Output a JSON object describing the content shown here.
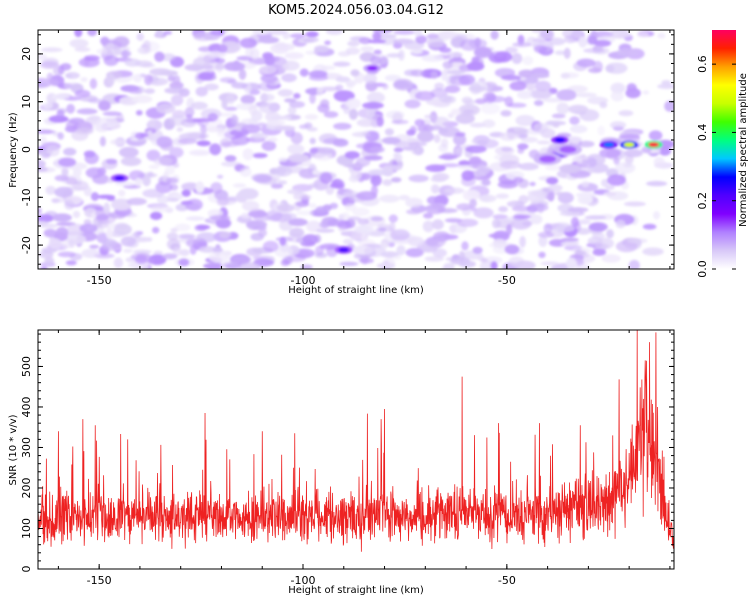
{
  "title": "KOM5.2024.056.03.04.G12",
  "colors": {
    "snr_line": "#ee2222",
    "axes": "#000000",
    "background": "#ffffff"
  },
  "chart_data": [
    {
      "type": "heatmap",
      "xlabel": "Height of straight line (km)",
      "ylabel": "Frequency (Hz)",
      "xlim": [
        -165,
        -9
      ],
      "ylim": [
        -25,
        25
      ],
      "xticks": [
        -150,
        -100,
        -50
      ],
      "yticks": [
        -20,
        -10,
        0,
        10,
        20
      ],
      "colorbar": {
        "label": "Normalized spectral amplitude",
        "range": [
          0.0,
          0.7
        ],
        "ticks": [
          0.0,
          0.2,
          0.4,
          0.6
        ],
        "colormap": [
          "#ffffff",
          "#d8c8f8",
          "#b080ff",
          "#8000ff",
          "#5000ff",
          "#0000ff",
          "#00c8ff",
          "#00ff80",
          "#40ff00",
          "#c8ff00",
          "#ffff00",
          "#ffa000",
          "#ff2000",
          "#ff0060"
        ]
      },
      "features": [
        {
          "kind": "peak",
          "x": -14,
          "y": 1,
          "value": 0.68
        },
        {
          "kind": "peak",
          "x": -20,
          "y": 1,
          "value": 0.5
        },
        {
          "kind": "peak",
          "x": -25,
          "y": 1,
          "value": 0.3
        },
        {
          "kind": "peak",
          "x": -37,
          "y": 2,
          "value": 0.25
        },
        {
          "kind": "peak",
          "x": -37,
          "y": -1,
          "value": 0.2
        },
        {
          "kind": "peak",
          "x": -145,
          "y": -6,
          "value": 0.22
        },
        {
          "kind": "peak",
          "x": -90,
          "y": -21,
          "value": 0.22
        },
        {
          "kind": "peak",
          "x": -83,
          "y": 17,
          "value": 0.15
        },
        {
          "kind": "band",
          "x": -35,
          "y": 0,
          "value": 0.12
        },
        {
          "kind": "band",
          "x": -40,
          "y": -2,
          "value": 0.12
        }
      ],
      "background_level": 0.06
    },
    {
      "type": "line",
      "xlabel": "Height of straight line (km)",
      "ylabel": "SNR (10 * v/v)",
      "xlim": [
        -165,
        -9
      ],
      "ylim": [
        0,
        590
      ],
      "xticks": [
        -150,
        -100,
        -50
      ],
      "yticks": [
        0,
        100,
        200,
        300,
        400,
        500
      ],
      "series": [
        {
          "x": [
            -165,
            -160,
            -155,
            -150,
            -145,
            -140,
            -135,
            -130,
            -125,
            -120,
            -115,
            -110,
            -105,
            -100,
            -95,
            -90,
            -85,
            -80,
            -75,
            -70,
            -65,
            -60,
            -55,
            -50,
            -45,
            -40,
            -35,
            -30,
            -25,
            -20,
            -17,
            -15,
            -13,
            -11,
            -9
          ],
          "y": [
            115,
            130,
            120,
            135,
            125,
            130,
            120,
            125,
            140,
            130,
            125,
            135,
            120,
            130,
            125,
            135,
            130,
            140,
            125,
            135,
            130,
            140,
            135,
            130,
            140,
            135,
            145,
            150,
            165,
            220,
            330,
            300,
            250,
            130,
            60
          ],
          "color": "#ee2222",
          "peaks": [
            {
              "x": -160,
              "y": 340
            },
            {
              "x": -154,
              "y": 370
            },
            {
              "x": -151,
              "y": 355
            },
            {
              "x": -143,
              "y": 320
            },
            {
              "x": -124,
              "y": 385
            },
            {
              "x": -110,
              "y": 340
            },
            {
              "x": -102,
              "y": 335
            },
            {
              "x": -80,
              "y": 395
            },
            {
              "x": -61,
              "y": 475
            },
            {
              "x": -52,
              "y": 360
            },
            {
              "x": -42,
              "y": 360
            },
            {
              "x": -32,
              "y": 355
            },
            {
              "x": -24,
              "y": 330
            },
            {
              "x": -18,
              "y": 590
            },
            {
              "x": -16,
              "y": 480
            },
            {
              "x": -15,
              "y": 560
            },
            {
              "x": -13,
              "y": 400
            }
          ]
        }
      ]
    }
  ]
}
